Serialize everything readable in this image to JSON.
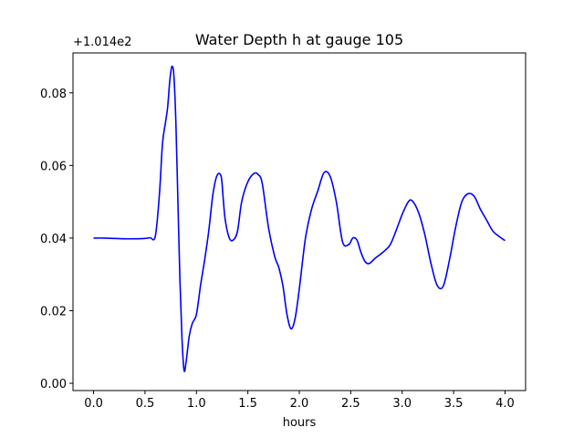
{
  "chart_data": {
    "type": "line",
    "title": "Water Depth h at gauge 105",
    "xlabel": "hours",
    "ylabel": "",
    "offset_label": "+1.014e2",
    "xlim": [
      -0.2,
      4.2
    ],
    "ylim": [
      -0.002,
      0.091
    ],
    "xticks": [
      0.0,
      0.5,
      1.0,
      1.5,
      2.0,
      2.5,
      3.0,
      3.5,
      4.0
    ],
    "xtick_labels": [
      "0.0",
      "0.5",
      "1.0",
      "1.5",
      "2.0",
      "2.5",
      "3.0",
      "3.5",
      "4.0"
    ],
    "yticks": [
      0.0,
      0.02,
      0.04,
      0.06,
      0.08
    ],
    "ytick_labels": [
      "0.00",
      "0.02",
      "0.04",
      "0.06",
      "0.08"
    ],
    "grid": false,
    "series": [
      {
        "color": "#0000ff",
        "x": [
          0.0,
          0.1,
          0.2,
          0.3,
          0.4,
          0.5,
          0.55,
          0.6,
          0.64,
          0.67,
          0.7,
          0.72,
          0.74,
          0.76,
          0.78,
          0.8,
          0.82,
          0.84,
          0.86,
          0.88,
          0.9,
          0.93,
          0.96,
          1.0,
          1.04,
          1.08,
          1.12,
          1.16,
          1.2,
          1.24,
          1.26,
          1.28,
          1.32,
          1.36,
          1.4,
          1.44,
          1.5,
          1.56,
          1.6,
          1.64,
          1.7,
          1.76,
          1.8,
          1.84,
          1.88,
          1.92,
          1.96,
          2.0,
          2.06,
          2.12,
          2.18,
          2.24,
          2.3,
          2.36,
          2.42,
          2.48,
          2.52,
          2.56,
          2.6,
          2.64,
          2.68,
          2.74,
          2.8,
          2.88,
          2.94,
          3.0,
          3.06,
          3.1,
          3.16,
          3.22,
          3.28,
          3.34,
          3.4,
          3.46,
          3.52,
          3.58,
          3.64,
          3.7,
          3.76,
          3.82,
          3.88,
          3.94,
          4.0
        ],
        "y": [
          0.04,
          0.04,
          0.0399,
          0.0398,
          0.0398,
          0.0399,
          0.0401,
          0.0405,
          0.052,
          0.066,
          0.072,
          0.076,
          0.083,
          0.0872,
          0.085,
          0.072,
          0.05,
          0.028,
          0.012,
          0.0035,
          0.006,
          0.013,
          0.0165,
          0.019,
          0.027,
          0.034,
          0.042,
          0.052,
          0.0572,
          0.057,
          0.051,
          0.045,
          0.04,
          0.0395,
          0.042,
          0.05,
          0.0555,
          0.0578,
          0.0575,
          0.055,
          0.043,
          0.035,
          0.032,
          0.027,
          0.019,
          0.015,
          0.018,
          0.026,
          0.04,
          0.048,
          0.053,
          0.058,
          0.057,
          0.05,
          0.039,
          0.0382,
          0.04,
          0.0395,
          0.036,
          0.0335,
          0.033,
          0.0345,
          0.0358,
          0.038,
          0.042,
          0.0465,
          0.05,
          0.0502,
          0.047,
          0.041,
          0.033,
          0.027,
          0.0268,
          0.034,
          0.043,
          0.05,
          0.0522,
          0.0515,
          0.048,
          0.045,
          0.042,
          0.0405,
          0.0393
        ]
      }
    ]
  }
}
